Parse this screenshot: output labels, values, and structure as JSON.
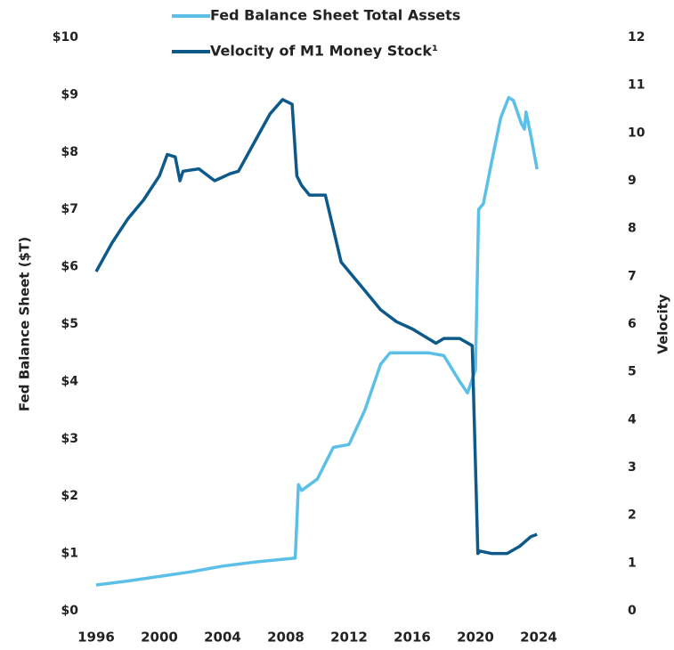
{
  "chart_data": {
    "type": "line",
    "y_label": "Fed Balance Sheet ($T)",
    "y2_label": "Velocity",
    "legend": "top",
    "xlim": [
      1996,
      2024
    ],
    "xticks": [
      1996,
      2000,
      2004,
      2008,
      2012,
      2016,
      2020,
      2024
    ],
    "ylim": [
      0,
      10
    ],
    "yticks": [
      {
        "value": 0,
        "label": "$0"
      },
      {
        "value": 1,
        "label": "$1"
      },
      {
        "value": 2,
        "label": "$2"
      },
      {
        "value": 3,
        "label": "$3"
      },
      {
        "value": 4,
        "label": "$4"
      },
      {
        "value": 5,
        "label": "$5"
      },
      {
        "value": 6,
        "label": "$6"
      },
      {
        "value": 7,
        "label": "$7"
      },
      {
        "value": 8,
        "label": "$8"
      },
      {
        "value": 9,
        "label": "$9"
      },
      {
        "value": 10,
        "label": "$10"
      }
    ],
    "y2lim": [
      0,
      12
    ],
    "y2ticks": [
      0,
      1,
      2,
      3,
      4,
      5,
      6,
      7,
      8,
      9,
      10,
      11,
      12
    ],
    "series": [
      {
        "name": "Fed Balance Sheet Total Assets",
        "color": "#5bbfe8",
        "axis": "y",
        "x": [
          1996,
          1998,
          2000,
          2002,
          2004,
          2006,
          2008.6,
          2008.8,
          2009,
          2010,
          2011,
          2012,
          2013,
          2014,
          2014.6,
          2017,
          2018,
          2019,
          2019.5,
          2020,
          2020.2,
          2020.5,
          2021,
          2021.6,
          2022.1,
          2022.4,
          2022.9,
          2023.1,
          2023.2,
          2023.5,
          2023.9
        ],
        "values": [
          0.45,
          0.52,
          0.6,
          0.68,
          0.78,
          0.85,
          0.92,
          2.2,
          2.1,
          2.3,
          2.85,
          2.9,
          3.5,
          4.3,
          4.5,
          4.5,
          4.45,
          4.0,
          3.8,
          4.2,
          7.0,
          7.1,
          7.8,
          8.6,
          8.95,
          8.9,
          8.5,
          8.4,
          8.7,
          8.3,
          7.7
        ]
      },
      {
        "name": "Velocity of M1 Money Stock¹",
        "color": "#0d5a8a",
        "axis": "y2",
        "x": [
          1996,
          1997,
          1998,
          1999,
          2000,
          2000.5,
          2001,
          2001.3,
          2001.5,
          2002.5,
          2003.5,
          2004.5,
          2005,
          2006,
          2007,
          2007.8,
          2008.4,
          2008.7,
          2009,
          2009.5,
          2010.5,
          2011,
          2011.5,
          2012,
          2013,
          2014,
          2015,
          2016,
          2017,
          2017.5,
          2018,
          2019,
          2019.8,
          2020.15,
          2020.3,
          2021,
          2022,
          2022.8,
          2023.5,
          2023.9
        ],
        "values": [
          7.1,
          7.7,
          8.2,
          8.6,
          9.1,
          9.55,
          9.5,
          9.0,
          9.2,
          9.25,
          9.0,
          9.15,
          9.2,
          9.8,
          10.4,
          10.7,
          10.6,
          9.1,
          8.9,
          8.7,
          8.7,
          8.0,
          7.3,
          7.1,
          6.7,
          6.3,
          6.05,
          5.9,
          5.7,
          5.6,
          5.7,
          5.7,
          5.55,
          1.2,
          1.25,
          1.2,
          1.2,
          1.35,
          1.55,
          1.6
        ]
      }
    ]
  }
}
